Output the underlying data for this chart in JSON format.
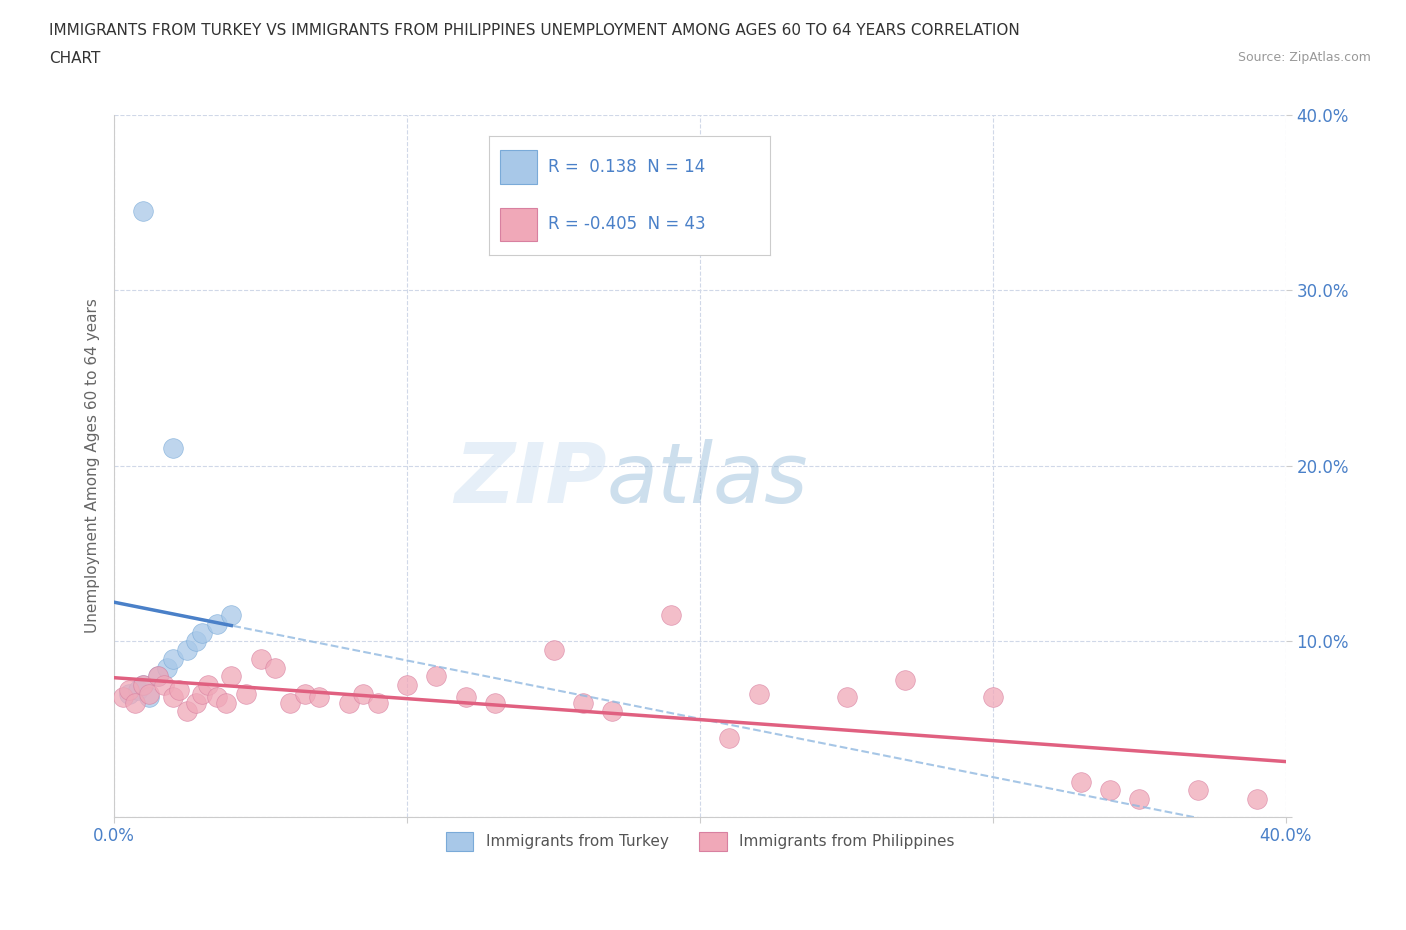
{
  "title_line1": "IMMIGRANTS FROM TURKEY VS IMMIGRANTS FROM PHILIPPINES UNEMPLOYMENT AMONG AGES 60 TO 64 YEARS CORRELATION",
  "title_line2": "CHART",
  "source": "Source: ZipAtlas.com",
  "ylabel": "Unemployment Among Ages 60 to 64 years",
  "legend_bottom": [
    "Immigrants from Turkey",
    "Immigrants from Philippines"
  ],
  "r_turkey": 0.138,
  "n_turkey": 14,
  "r_philippines": -0.405,
  "n_philippines": 43,
  "turkey_color": "#a8c8e8",
  "philippines_color": "#f0a8b8",
  "turkey_line_color": "#4a80c8",
  "philippines_line_color": "#e06080",
  "turkey_line_style": "solid",
  "philippines_line_style": "solid",
  "watermark_zip": "ZIP",
  "watermark_atlas": "atlas",
  "xlim": [
    0.0,
    0.4
  ],
  "ylim": [
    0.0,
    0.4
  ],
  "background_color": "#ffffff",
  "grid_color": "#d0d8e8",
  "turkey_scatter_x": [
    0.005,
    0.008,
    0.01,
    0.012,
    0.015,
    0.018,
    0.02,
    0.025,
    0.028,
    0.03,
    0.035,
    0.04,
    0.01,
    0.02
  ],
  "turkey_scatter_y": [
    0.07,
    0.072,
    0.075,
    0.068,
    0.08,
    0.085,
    0.09,
    0.095,
    0.1,
    0.105,
    0.11,
    0.115,
    0.345,
    0.21
  ],
  "philippines_scatter_x": [
    0.003,
    0.005,
    0.007,
    0.01,
    0.012,
    0.015,
    0.017,
    0.02,
    0.022,
    0.025,
    0.028,
    0.03,
    0.032,
    0.035,
    0.038,
    0.04,
    0.045,
    0.05,
    0.055,
    0.06,
    0.065,
    0.07,
    0.08,
    0.085,
    0.09,
    0.1,
    0.11,
    0.12,
    0.13,
    0.15,
    0.16,
    0.17,
    0.19,
    0.21,
    0.22,
    0.25,
    0.27,
    0.3,
    0.33,
    0.34,
    0.35,
    0.37,
    0.39
  ],
  "philippines_scatter_y": [
    0.068,
    0.072,
    0.065,
    0.075,
    0.07,
    0.08,
    0.075,
    0.068,
    0.072,
    0.06,
    0.065,
    0.07,
    0.075,
    0.068,
    0.065,
    0.08,
    0.07,
    0.09,
    0.085,
    0.065,
    0.07,
    0.068,
    0.065,
    0.07,
    0.065,
    0.075,
    0.08,
    0.068,
    0.065,
    0.095,
    0.065,
    0.06,
    0.115,
    0.045,
    0.07,
    0.068,
    0.078,
    0.068,
    0.02,
    0.015,
    0.01,
    0.015,
    0.01
  ]
}
